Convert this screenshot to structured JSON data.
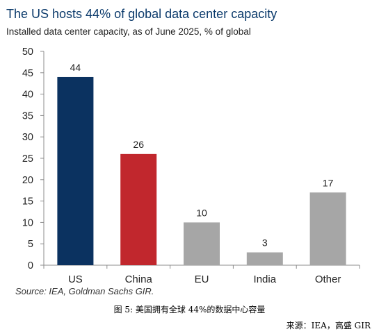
{
  "title": "The US hosts 44% of global data center capacity",
  "subtitle": "Installed data center capacity, as of June 2025, % of global",
  "source": "Source: IEA, Goldman Sachs GIR.",
  "caption": "图 5: 美国拥有全球 44%的数据中心容量",
  "credit": "来源：IEA，高盛 GIR",
  "chart_data": {
    "type": "bar",
    "title": "The US hosts 44% of global data center capacity",
    "subtitle": "Installed data center capacity, as of June 2025, % of global",
    "categories": [
      "US",
      "China",
      "EU",
      "India",
      "Other"
    ],
    "values": [
      44,
      26,
      10,
      3,
      17
    ],
    "value_labels": [
      "44",
      "26",
      "10",
      "3",
      "17"
    ],
    "bar_colors": [
      "#0b3260",
      "#c1272d",
      "#a6a6a6",
      "#a6a6a6",
      "#a6a6a6"
    ],
    "ylim": [
      0,
      50
    ],
    "yticks": [
      0,
      5,
      10,
      15,
      20,
      25,
      30,
      35,
      40,
      45,
      50
    ],
    "grid": false,
    "legend": false
  }
}
